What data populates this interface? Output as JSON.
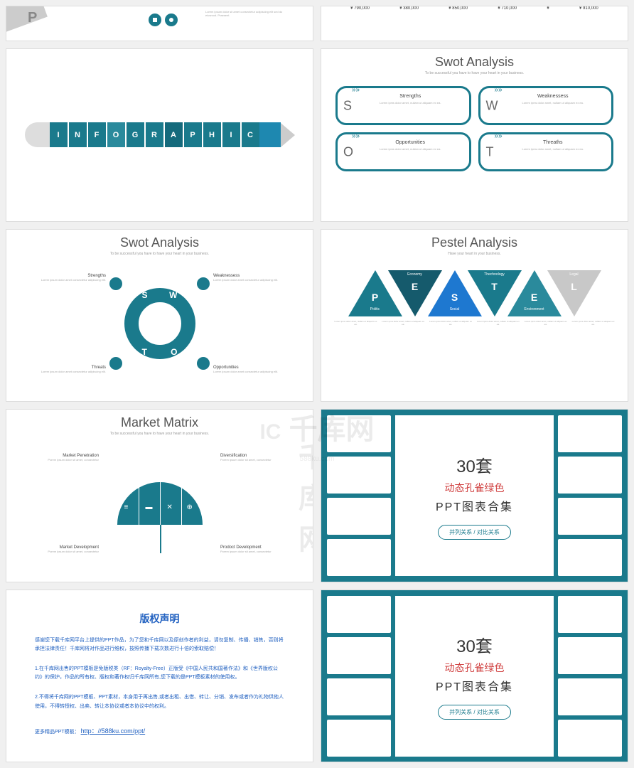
{
  "colors": {
    "teal": "#1a7a8c",
    "teal_dark": "#156a7c",
    "teal_light": "#2a8a9c",
    "blue": "#1e88b0",
    "gray": "#cccccc",
    "bright_blue": "#2060c0",
    "red": "#d04040"
  },
  "watermark": {
    "main": "千库网",
    "sub": "588ku.com"
  },
  "s1": {
    "prices": [
      "¥ 790,000",
      "¥ 380,000",
      "¥ 850,000",
      "¥ 710,000",
      "¥",
      "¥ 910,000"
    ]
  },
  "s2": {
    "letter": "P",
    "desc": "Lorem ipsum dolor sit amet consectetur adipiscing elit sed do eiusmod. Praesent."
  },
  "s3": {
    "letters": [
      "I",
      "N",
      "F",
      "O",
      "G",
      "R",
      "A",
      "P",
      "H",
      "I",
      "C"
    ]
  },
  "s4": {
    "title": "Swot Analysis",
    "sub": "To be successful you have to have your heart in your business.",
    "items": [
      {
        "letter": "S",
        "title": "Strengths",
        "desc": "Lorem ipms dolor amet, nullam ut aliquam ex ea."
      },
      {
        "letter": "W",
        "title": "Weaknessess",
        "desc": "Lorem ipms dolor amet, nullam ut aliquam ex ea."
      },
      {
        "letter": "O",
        "title": "Opportunities",
        "desc": "Lorem ipms dolor amet, nullam ut aliquam ex ea."
      },
      {
        "letter": "T",
        "title": "Threaths",
        "desc": "Lorem ipms dolor amet, nullam ut aliquam ex ea."
      }
    ]
  },
  "s5": {
    "title": "Swot Analysis",
    "sub": "To be successful you have to have your heart in your business.",
    "circle": [
      "S",
      "W",
      "T",
      "O"
    ],
    "items": [
      {
        "title": "Strengths",
        "desc": "Lorem ipsum dolor amet consectetur adipiscing elit."
      },
      {
        "title": "Weaknessess",
        "desc": "Lorem ipsum dolor amet consectetur adipiscing elit."
      },
      {
        "title": "Threats",
        "desc": "Lorem ipsum dolor amet consectetur adipiscing elit."
      },
      {
        "title": "Opportunities",
        "desc": "Lorem ipsum dolor amet consectetur adipiscing elit."
      }
    ]
  },
  "s6": {
    "title": "Pestel Analysis",
    "sub": "Have your heart in your business.",
    "triangles": [
      {
        "letter": "P",
        "label": "Politic",
        "color": "#1a7a8c",
        "dir": "up"
      },
      {
        "letter": "E",
        "label": "Economy",
        "color": "#155a6c",
        "dir": "down"
      },
      {
        "letter": "S",
        "label": "Social",
        "color": "#1e78d0",
        "dir": "up"
      },
      {
        "letter": "T",
        "label": "Thechnology",
        "color": "#1a7a8c",
        "dir": "down"
      },
      {
        "letter": "E",
        "label": "Environment",
        "color": "#2a8a9c",
        "dir": "up"
      },
      {
        "letter": "L",
        "label": "Legal",
        "color": "#c8c8c8",
        "dir": "down"
      }
    ],
    "desc": "Lorem ipms dolor amet, nullam ut aliquam ex ea."
  },
  "s7": {
    "title": "Market Matrix",
    "sub": "To be successful you have to have your heart in your business.",
    "items": [
      {
        "title": "Market Penetration",
        "desc": "Porem ipsum dolor sit amet, consectetur"
      },
      {
        "title": "Diversification",
        "desc": "Porem ipsum dolor sit amet, consectetur"
      },
      {
        "title": "Market Development",
        "desc": "Porem ipsum dolor sit amet, consectetur"
      },
      {
        "title": "Prodoct Development",
        "desc": "Porem ipsum dolor sit amet, consectetur"
      }
    ]
  },
  "s8": {
    "num": "30套",
    "title1": "动态孔雀绿色",
    "title2": "PPT图表合集",
    "btn": "并列关系 / 对比关系"
  },
  "s9": {
    "title": "版权声明",
    "p1": "感谢您下载千库网平台上提供的PPT作品，为了您和千库网以及原创作者的利益，请勿复制、传播、销售，否则将承担法律责任！千库网将对作品进行维权，按照传播下载次数进行十倍的索取赔偿！",
    "p2": "1.在千库网出售的PPT模板是免版税类（RF：Royalty-Free）正版受《中国人民共和国著作法》和《世界版权公约》的保护，作品的所有权、版权和著作权归千库网所有,您下载的是PPT模板素材的使用权。",
    "p3": "2.不得将千库网的PPT模板、PPT素材，本身用于再出售,或者出租、出借、转让、分销、发布或者作为礼物供他人使用，不得转授权、出卖、转让本协议或者本协议中的权利。",
    "link_label": "更多精品PPT模板：",
    "link": "http：//588ku.com/ppt/"
  }
}
